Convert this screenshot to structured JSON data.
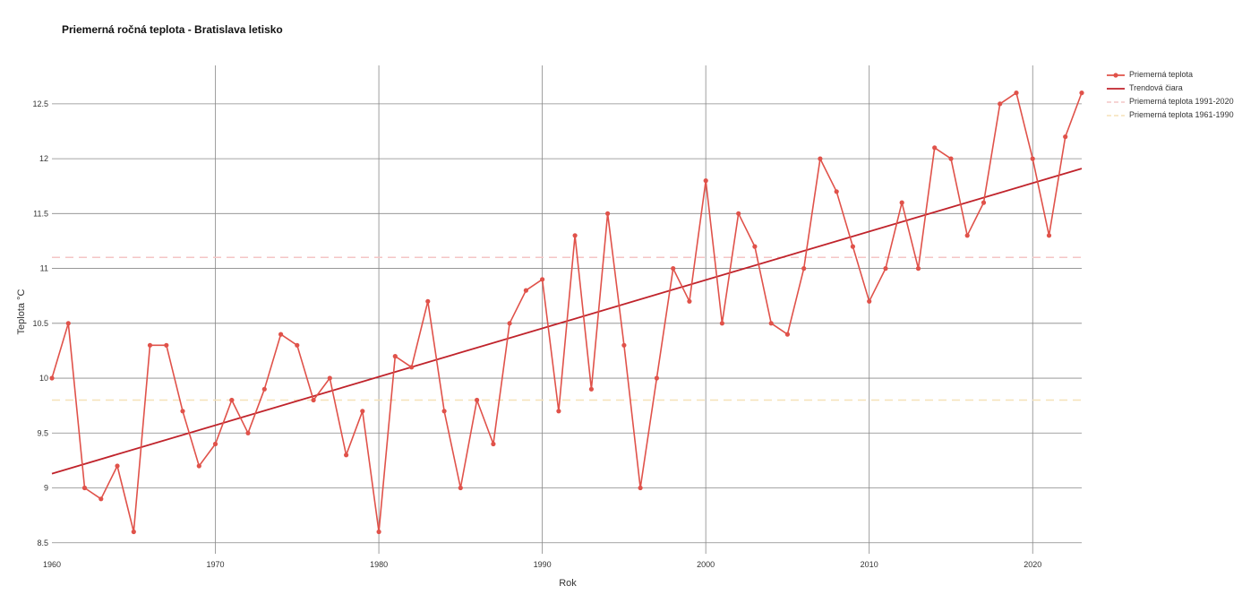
{
  "title": "Priemerná ročná teplota - Bratislava letisko",
  "chart_data": {
    "type": "line",
    "title": "Priemerná ročná teplota - Bratislava letisko",
    "xlabel": "Rok",
    "ylabel": "Teplota °C",
    "xlim": [
      1960,
      2023
    ],
    "ylim": [
      8.4,
      12.85
    ],
    "x_ticks": [
      1960,
      1970,
      1980,
      1990,
      2000,
      2010,
      2020
    ],
    "y_ticks": [
      8.5,
      9,
      9.5,
      10,
      10.5,
      11,
      11.5,
      12,
      12.5
    ],
    "grid": true,
    "legend_position": "top-right",
    "series": [
      {
        "name": "Priemerná teplota",
        "kind": "line-markers",
        "color": "#e0524a",
        "x": [
          1960,
          1961,
          1962,
          1963,
          1964,
          1965,
          1966,
          1967,
          1968,
          1969,
          1970,
          1971,
          1972,
          1973,
          1974,
          1975,
          1976,
          1977,
          1978,
          1979,
          1980,
          1981,
          1982,
          1983,
          1984,
          1985,
          1986,
          1987,
          1988,
          1989,
          1990,
          1991,
          1992,
          1993,
          1994,
          1995,
          1996,
          1997,
          1998,
          1999,
          2000,
          2001,
          2002,
          2003,
          2004,
          2005,
          2006,
          2007,
          2008,
          2009,
          2010,
          2011,
          2012,
          2013,
          2014,
          2015,
          2016,
          2017,
          2018,
          2019,
          2020,
          2021,
          2022,
          2023
        ],
        "values": [
          10.0,
          10.5,
          9.0,
          8.9,
          9.2,
          8.6,
          10.3,
          10.3,
          9.7,
          9.2,
          9.4,
          9.8,
          9.5,
          9.9,
          10.4,
          10.3,
          9.8,
          10.0,
          9.3,
          9.7,
          8.6,
          10.2,
          10.1,
          10.7,
          9.7,
          9.0,
          9.8,
          9.4,
          10.5,
          10.8,
          10.9,
          9.7,
          11.3,
          9.9,
          11.5,
          10.3,
          9.0,
          10.0,
          11.0,
          10.7,
          11.8,
          10.5,
          11.5,
          11.2,
          10.5,
          10.4,
          11.0,
          12.0,
          11.7,
          11.2,
          10.7,
          11.0,
          11.6,
          11.0,
          12.1,
          12.0,
          11.3,
          11.6,
          12.5,
          12.6,
          12.0,
          11.3,
          12.2,
          12.6
        ]
      },
      {
        "name": "Trendová čiara",
        "kind": "line",
        "color": "#c0232b",
        "x": [
          1960,
          2023
        ],
        "values": [
          9.13,
          11.91
        ]
      },
      {
        "name": "Priemerná teplota 1991-2020",
        "kind": "dashed",
        "color": "#f4c6c6",
        "x": [
          1960,
          2023
        ],
        "values": [
          11.1,
          11.1
        ]
      },
      {
        "name": "Priemerná teplota 1961-1990",
        "kind": "dashed",
        "color": "#f6e2b8",
        "x": [
          1960,
          2023
        ],
        "values": [
          9.8,
          9.8
        ]
      }
    ]
  }
}
